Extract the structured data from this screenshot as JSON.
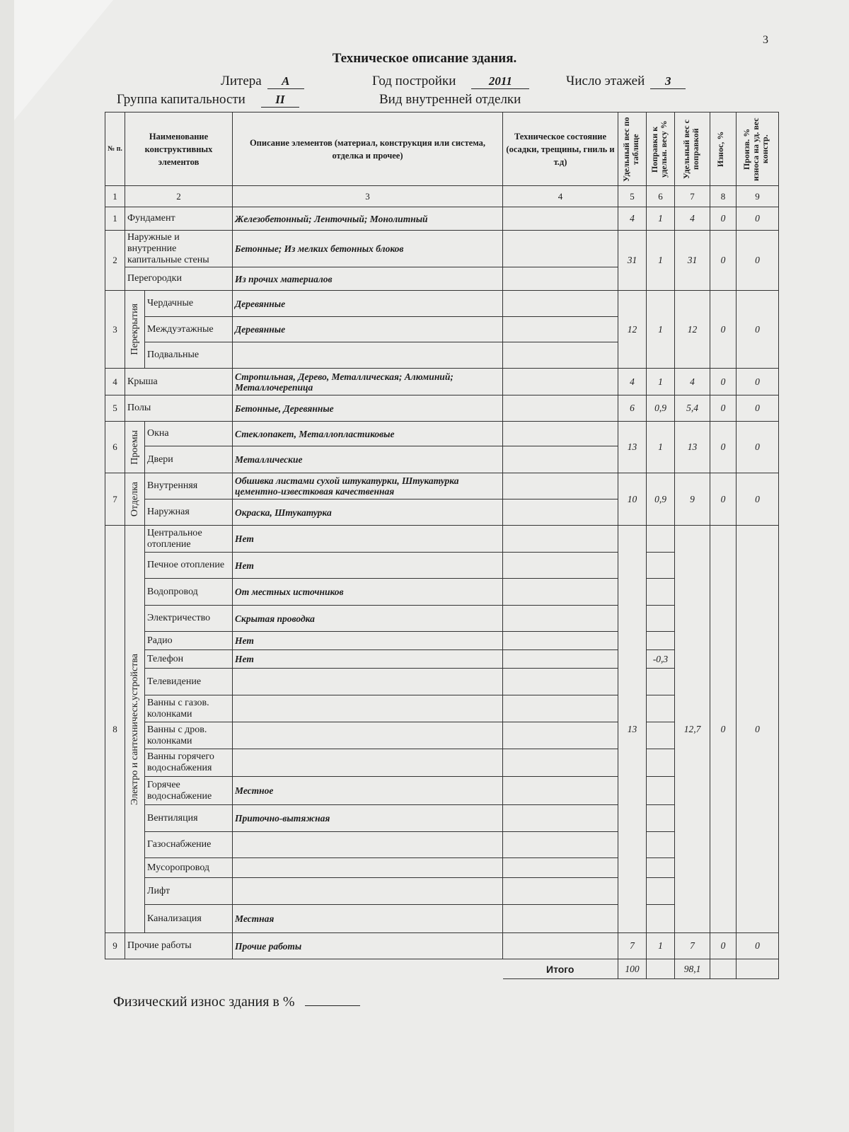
{
  "page_number": "3",
  "title": "Техническое описание здания.",
  "fields": {
    "litera_label": "Литера",
    "litera_value": "А",
    "year_label": "Год постройки",
    "year_value": "2011",
    "floors_label": "Число этажей",
    "floors_value": "3",
    "group_label": "Группа капитальности",
    "group_value": "II",
    "finish_label": "Вид внутренней отделки"
  },
  "columns": [
    {
      "header": "№ п.",
      "index": "1"
    },
    {
      "header": "Наименование конструктивных элементов",
      "index": "2"
    },
    {
      "header": "Описание элементов (материал, конструкция или система, отделка и прочее)",
      "index": "3"
    },
    {
      "header": "Техническое состояние (осадки, трещины, гниль и т.д)",
      "index": "4"
    },
    {
      "header": "Удельный вес по таблице",
      "index": "5"
    },
    {
      "header": "Поправки к удельн. весу %",
      "index": "6"
    },
    {
      "header": "Удельный вес с поправкой",
      "index": "7"
    },
    {
      "header": "Износ, %",
      "index": "8"
    },
    {
      "header": "Произв. % износа на уд. вес констр.",
      "index": "9"
    }
  ],
  "sections": [
    {
      "num": "1",
      "items": [
        {
          "name": "Фундамент",
          "desc": "Железобетонный; Ленточный; Монолитный",
          "state": ""
        }
      ],
      "weight": "4",
      "correction": "1",
      "corrected": "4",
      "wear": "0",
      "product": "0"
    },
    {
      "num": "2",
      "items": [
        {
          "name": "Наружные и внутренние капитальные стены",
          "desc": "Бетонные; Из мелких бетонных блоков",
          "state": ""
        },
        {
          "name": "Перегородки",
          "desc": "Из прочих материалов",
          "state": ""
        }
      ],
      "weight": "31",
      "correction": "1",
      "corrected": "31",
      "wear": "0",
      "product": "0"
    },
    {
      "num": "3",
      "group": "Перекрытия",
      "items": [
        {
          "name": "Чердачные",
          "desc": "Деревянные",
          "state": ""
        },
        {
          "name": "Междуэтажные",
          "desc": "Деревянные",
          "state": ""
        },
        {
          "name": "Подвальные",
          "desc": "",
          "state": ""
        }
      ],
      "weight": "12",
      "correction": "1",
      "corrected": "12",
      "wear": "0",
      "product": "0"
    },
    {
      "num": "4",
      "items": [
        {
          "name": "Крыша",
          "desc": "Стропильная, Дерево, Металлическая; Алюминий; Металлочерепица",
          "state": ""
        }
      ],
      "weight": "4",
      "correction": "1",
      "corrected": "4",
      "wear": "0",
      "product": "0"
    },
    {
      "num": "5",
      "items": [
        {
          "name": "Полы",
          "desc": "Бетонные, Деревянные",
          "state": ""
        }
      ],
      "weight": "6",
      "correction": "0,9",
      "corrected": "5,4",
      "wear": "0",
      "product": "0"
    },
    {
      "num": "6",
      "group": "Проемы",
      "items": [
        {
          "name": "Окна",
          "desc": "Стеклопакет, Металлопластиковые",
          "state": ""
        },
        {
          "name": "Двери",
          "desc": "Металлические",
          "state": ""
        }
      ],
      "weight": "13",
      "correction": "1",
      "corrected": "13",
      "wear": "0",
      "product": "0"
    },
    {
      "num": "7",
      "group": "Отделка",
      "items": [
        {
          "name": "Внутренняя",
          "desc": "Обшивка листами сухой штукатурки, Штукатурка цементно-известковая качественная",
          "state": ""
        },
        {
          "name": "Наружная",
          "desc": "Окраска, Штукатурка",
          "state": ""
        }
      ],
      "weight": "10",
      "correction": "0,9",
      "corrected": "9",
      "wear": "0",
      "product": "0"
    },
    {
      "num": "8",
      "group": "Электро и сантехническ.устройства",
      "items": [
        {
          "name": "Центральное отопление",
          "desc": "Нет",
          "state": "",
          "correction": ""
        },
        {
          "name": "Печное отопление",
          "desc": "Нет",
          "state": "",
          "correction": ""
        },
        {
          "name": "Водопровод",
          "desc": "От местных источников",
          "state": "",
          "correction": ""
        },
        {
          "name": "Электричество",
          "desc": "Скрытая проводка",
          "state": "",
          "correction": ""
        },
        {
          "name": "Радио",
          "desc": "Нет",
          "state": "",
          "correction": ""
        },
        {
          "name": "Телефон",
          "desc": "Нет",
          "state": "",
          "correction": "-0,3"
        },
        {
          "name": "Телевидение",
          "desc": "",
          "state": "",
          "correction": ""
        },
        {
          "name": "Ванны с газов. колонками",
          "desc": "",
          "state": "",
          "correction": ""
        },
        {
          "name": "Ванны с дров. колонками",
          "desc": "",
          "state": "",
          "correction": ""
        },
        {
          "name": "Ванны горячего водоснабжения",
          "desc": "",
          "state": "",
          "correction": ""
        },
        {
          "name": "Горячее водоснабжение",
          "desc": "Местное",
          "state": "",
          "correction": ""
        },
        {
          "name": "Вентиляция",
          "desc": "Приточно-вытяжная",
          "state": "",
          "correction": ""
        },
        {
          "name": "Газоснабжение",
          "desc": "",
          "state": "",
          "correction": ""
        },
        {
          "name": "Мусоропровод",
          "desc": "",
          "state": "",
          "correction": ""
        },
        {
          "name": "Лифт",
          "desc": "",
          "state": "",
          "correction": ""
        },
        {
          "name": "Канализация",
          "desc": "Местная",
          "state": "",
          "correction": ""
        }
      ],
      "weight": "13",
      "corrected": "12,7",
      "wear": "0",
      "product": "0"
    },
    {
      "num": "9",
      "items": [
        {
          "name": "Прочие работы",
          "desc": "Прочие работы",
          "state": ""
        }
      ],
      "weight": "7",
      "correction": "1",
      "corrected": "7",
      "wear": "0",
      "product": "0"
    }
  ],
  "totals": {
    "label": "Итого",
    "weight": "100",
    "correction": "",
    "corrected": "98,1",
    "wear": "",
    "product": ""
  },
  "footer": {
    "label": "Физический износ здания в %",
    "value": ""
  }
}
